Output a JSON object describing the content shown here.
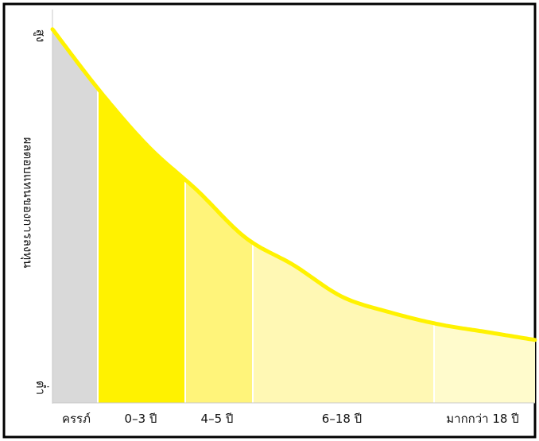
{
  "chart_data": {
    "type": "area",
    "title": "",
    "xlabel": "",
    "ylabel": "ผลตอบแทนของการลงทุน",
    "y_high_label": "สูง",
    "y_low_label": "ต่ำ",
    "categories": [
      "ครรภ์",
      "0–3 ปี",
      "4–5 ปี",
      "6–18 ปี",
      "มากกว่า 18 ปี"
    ],
    "segment_colors": [
      "#d9d9d9",
      "#fff200",
      "#fff47a",
      "#fff8b4",
      "#fffbcc"
    ],
    "curve_color": "#fff200",
    "ylim": [
      0,
      100
    ],
    "curve_points": [
      {
        "x": 0.0,
        "y": 95
      },
      {
        "x": 0.5,
        "y": 79
      },
      {
        "x": 1.0,
        "y": 65
      },
      {
        "x": 1.5,
        "y": 54
      },
      {
        "x": 2.0,
        "y": 42
      },
      {
        "x": 2.5,
        "y": 35
      },
      {
        "x": 3.0,
        "y": 27
      },
      {
        "x": 3.5,
        "y": 23
      },
      {
        "x": 4.0,
        "y": 20
      },
      {
        "x": 4.5,
        "y": 18
      },
      {
        "x": 5.0,
        "y": 16
      }
    ]
  }
}
